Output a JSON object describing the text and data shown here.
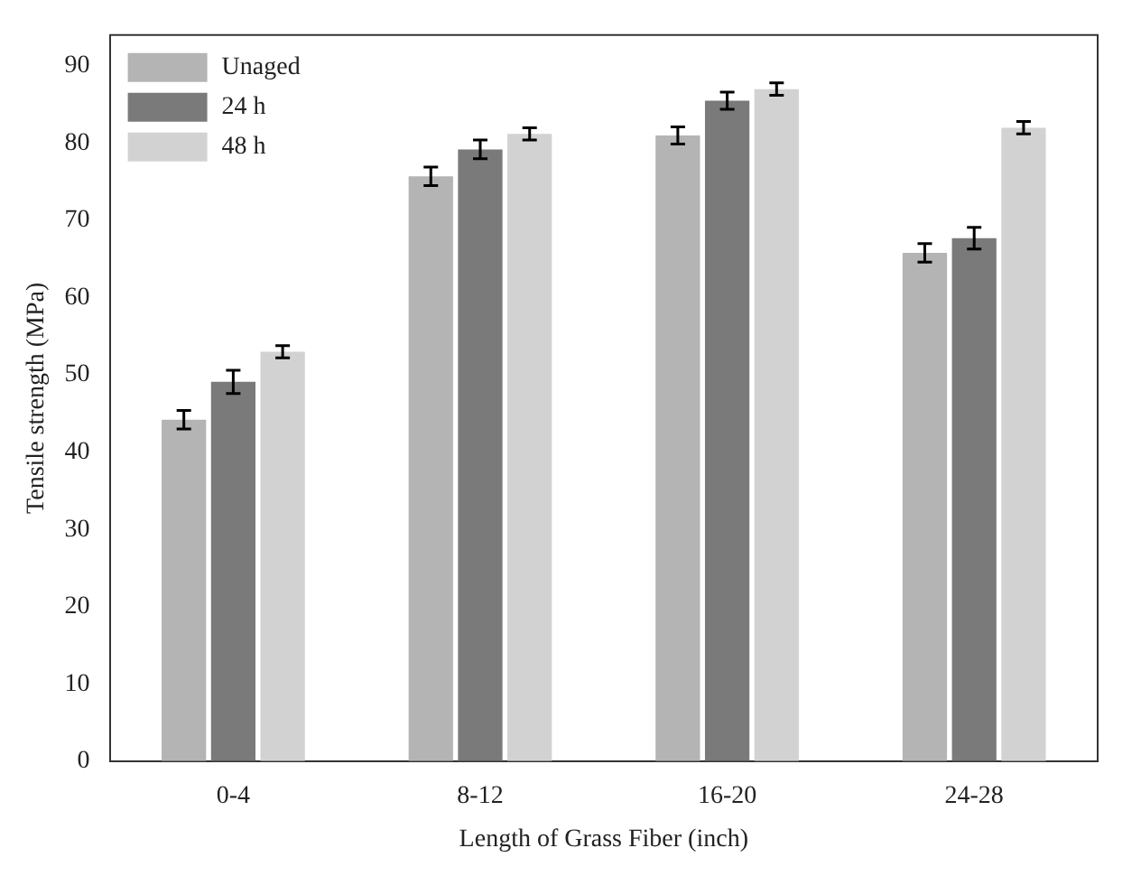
{
  "chart_data": {
    "type": "bar",
    "xlabel": "Length of Grass Fiber (inch)",
    "ylabel": "Tensile strength (MPa)",
    "categories": [
      "0-4",
      "8-12",
      "16-20",
      "24-28"
    ],
    "series": [
      {
        "name": "Unaged",
        "color": "#b4b4b4",
        "values": [
          44.2,
          75.7,
          81,
          65.8
        ],
        "errors": [
          1.2,
          1.2,
          1.1,
          1.2
        ]
      },
      {
        "name": "24 h",
        "color": "#7a7a7a",
        "values": [
          49.1,
          79.2,
          85.5,
          67.7
        ],
        "errors": [
          1.5,
          1.2,
          1.1,
          1.4
        ]
      },
      {
        "name": "48 h",
        "color": "#d2d2d2",
        "values": [
          53,
          81.2,
          87,
          82
        ],
        "errors": [
          0.8,
          0.8,
          0.8,
          0.8
        ]
      }
    ],
    "ylim": [
      0,
      94
    ],
    "yticks": [
      0,
      10,
      20,
      30,
      40,
      50,
      60,
      70,
      80,
      90
    ],
    "grid": false,
    "legend": "top left"
  }
}
